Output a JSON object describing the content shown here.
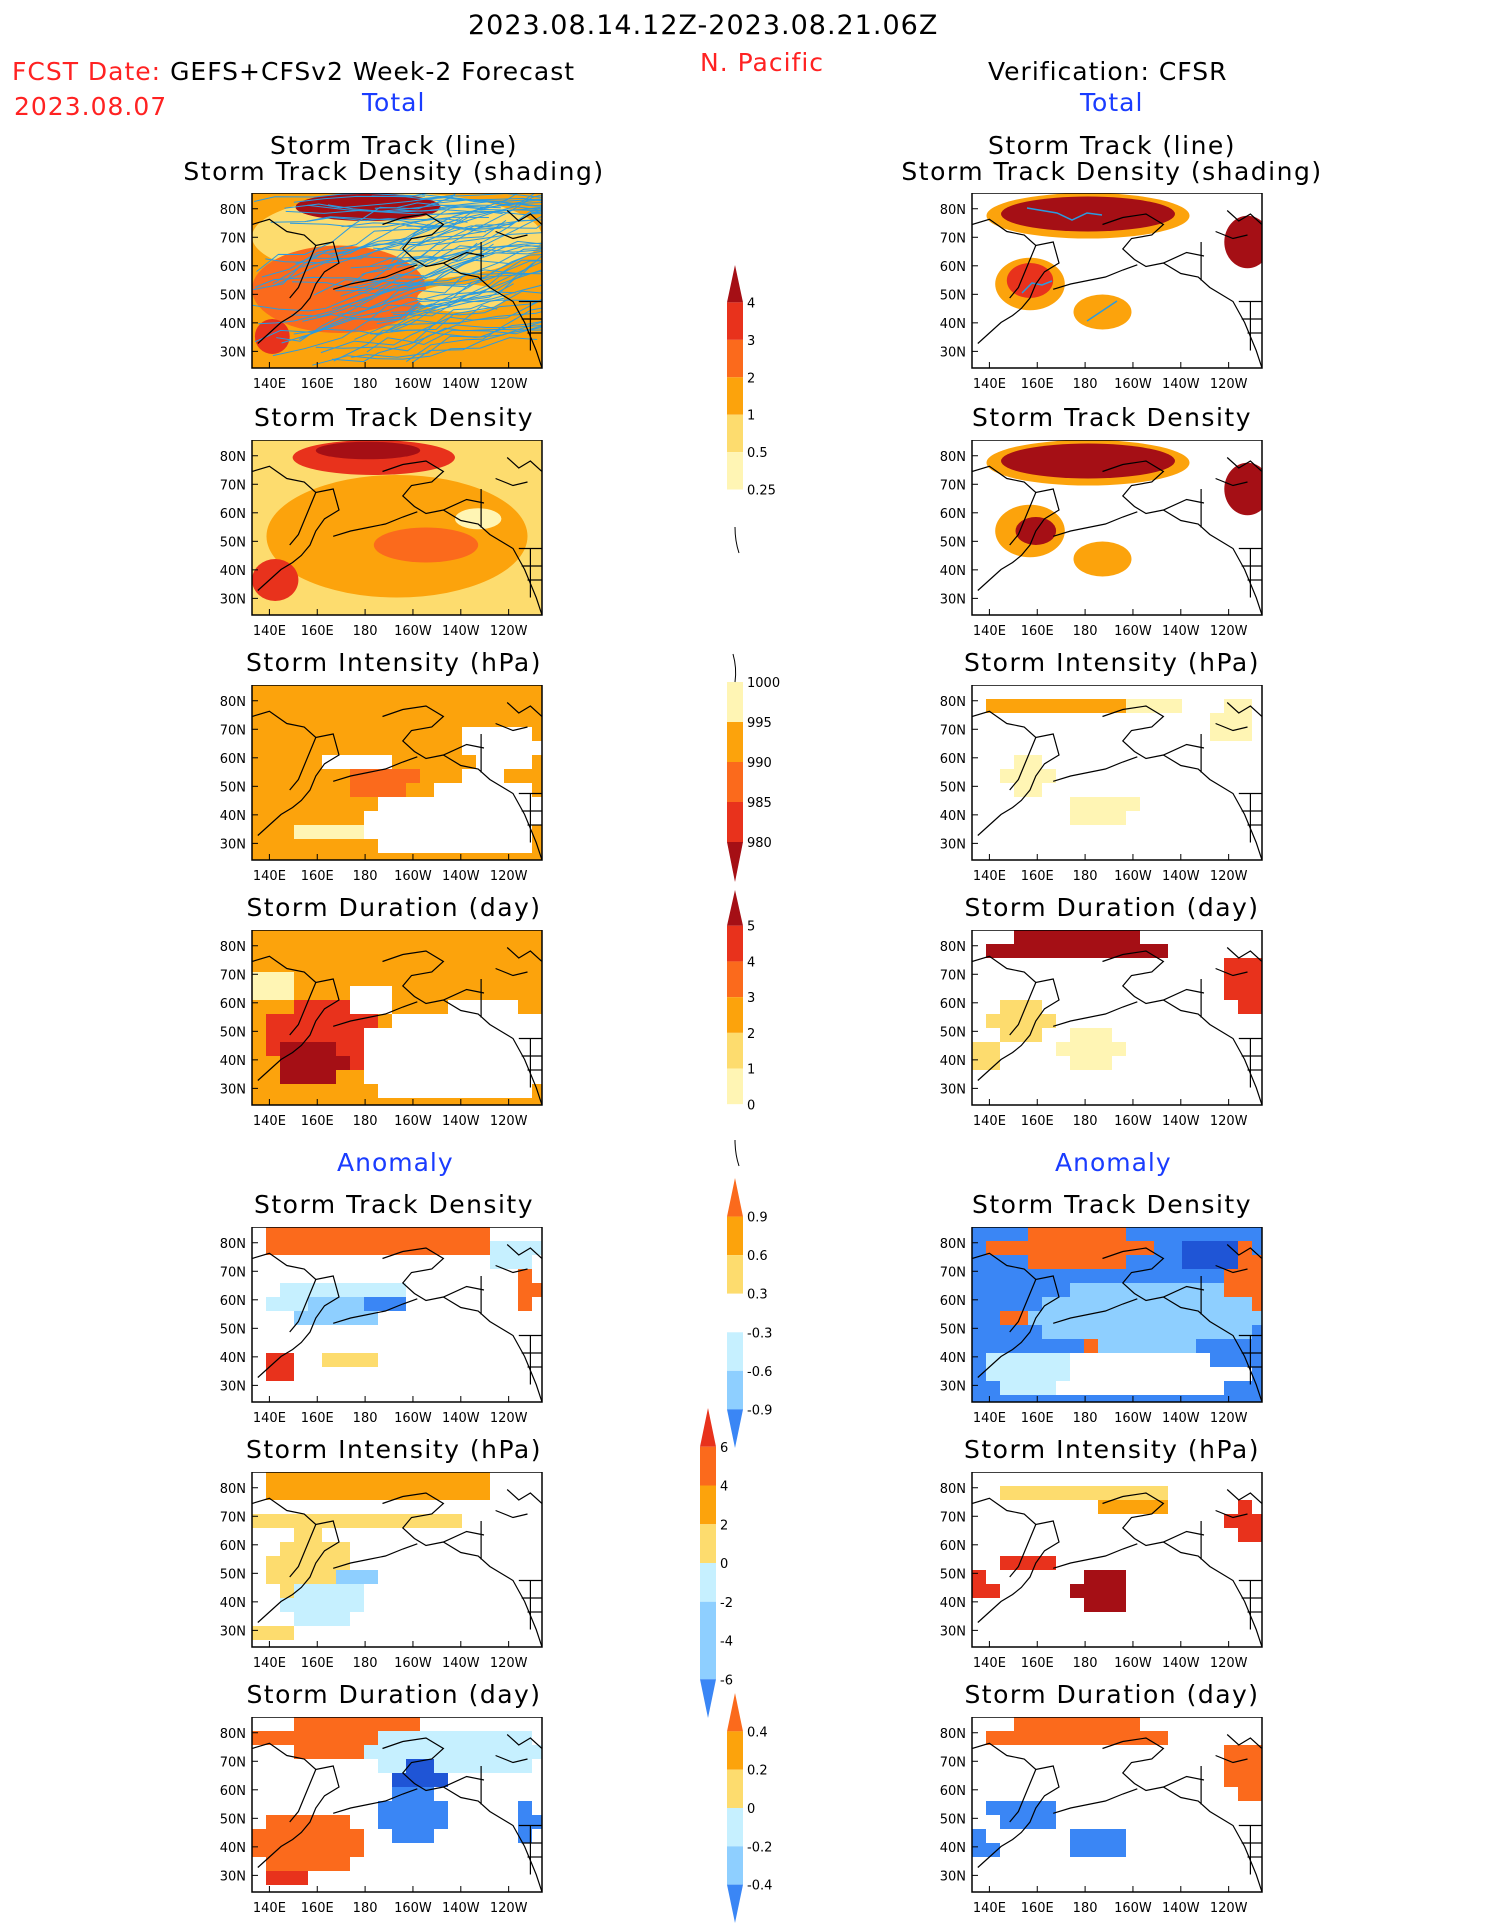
{
  "header": {
    "period": "2023.08.14.12Z-2023.08.21.06Z",
    "region": "N. Pacific",
    "fcst_label": "FCST Date:",
    "fcst_model": "GEFS+CFSv2 Week-2 Forecast",
    "fcst_date": "2023.08.07",
    "verification": "Verification: CFSR",
    "total_left": "Total",
    "total_right": "Total",
    "anomaly_left": "Anomaly",
    "anomaly_right": "Anomaly"
  },
  "panel_titles": {
    "track_line": "Storm Track (line)",
    "track_density_shading": "Storm Track Density (shading)",
    "track_density": "Storm Track Density",
    "intensity": "Storm Intensity (hPa)",
    "duration": "Storm Duration (day)"
  },
  "axes": {
    "lat_labels": [
      "80N",
      "70N",
      "60N",
      "50N",
      "40N",
      "30N"
    ],
    "lon_labels": [
      "140E",
      "160E",
      "180",
      "160W",
      "140W",
      "120W"
    ]
  },
  "colors": {
    "yellow_light": "#fff5b4",
    "yellow": "#fddc6e",
    "orange": "#fca30c",
    "orange_red": "#fb6a1c",
    "red": "#e8321c",
    "dark_red": "#a50f15",
    "blue_light": "#c6f0ff",
    "blue_mid": "#8ecfff",
    "blue": "#3a86f5",
    "blue_dark": "#1f55d6",
    "track_line": "#2b9be0"
  },
  "colorbars": {
    "density": [
      "0.25",
      "0.5",
      "1",
      "2",
      "3",
      "4"
    ],
    "intensity": [
      "1000",
      "995",
      "990",
      "985",
      "980"
    ],
    "duration": [
      "0",
      "1",
      "2",
      "3",
      "4",
      "5"
    ],
    "anom_density": [
      "0.9",
      "0.6",
      "0.3",
      "-0.3",
      "-0.6",
      "-0.9"
    ],
    "anom_intensity": [
      "6",
      "4",
      "2",
      "0",
      "-2",
      "-4",
      "-6"
    ],
    "anom_duration": [
      "0.4",
      "0.2",
      "0",
      "-0.2",
      "-0.4"
    ]
  },
  "chart_data": {
    "type": "heatmap",
    "title": "2023.08.14.12Z-2023.08.21.06Z",
    "region": "N. Pacific",
    "panels": [
      {
        "column": "forecast",
        "section": "Total",
        "field": "Storm Track (line) / Storm Track Density (shading)"
      },
      {
        "column": "forecast",
        "section": "Total",
        "field": "Storm Track Density"
      },
      {
        "column": "forecast",
        "section": "Total",
        "field": "Storm Intensity (hPa)"
      },
      {
        "column": "forecast",
        "section": "Total",
        "field": "Storm Duration (day)"
      },
      {
        "column": "forecast",
        "section": "Anomaly",
        "field": "Storm Track Density"
      },
      {
        "column": "forecast",
        "section": "Anomaly",
        "field": "Storm Intensity (hPa)"
      },
      {
        "column": "forecast",
        "section": "Anomaly",
        "field": "Storm Duration (day)"
      },
      {
        "column": "verification",
        "section": "Total",
        "field": "Storm Track (line) / Storm Track Density (shading)"
      },
      {
        "column": "verification",
        "section": "Total",
        "field": "Storm Track Density"
      },
      {
        "column": "verification",
        "section": "Total",
        "field": "Storm Intensity (hPa)"
      },
      {
        "column": "verification",
        "section": "Total",
        "field": "Storm Duration (day)"
      },
      {
        "column": "verification",
        "section": "Anomaly",
        "field": "Storm Track Density"
      },
      {
        "column": "verification",
        "section": "Anomaly",
        "field": "Storm Intensity (hPa)"
      },
      {
        "column": "verification",
        "section": "Anomaly",
        "field": "Storm Duration (day)"
      }
    ],
    "lat_range": [
      "25N",
      "85N"
    ],
    "lon_range": [
      "135E",
      "110W"
    ]
  }
}
